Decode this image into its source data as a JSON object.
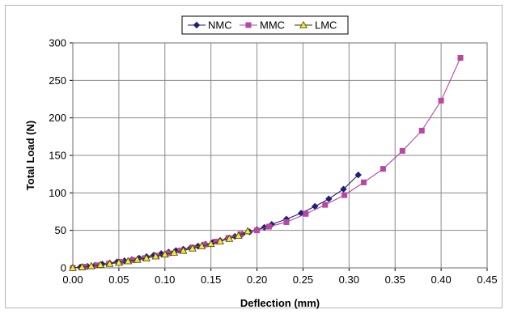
{
  "chart_data": {
    "type": "line",
    "title": "",
    "xlabel": "Deflection (mm)",
    "ylabel": "Total Load (N)",
    "xlim": [
      0,
      0.45
    ],
    "ylim": [
      0,
      300
    ],
    "x_ticks": [
      "0.00",
      "0.05",
      "0.10",
      "0.15",
      "0.20",
      "0.25",
      "0.30",
      "0.35",
      "0.40",
      "0.45"
    ],
    "y_ticks": [
      "0",
      "50",
      "100",
      "150",
      "200",
      "250",
      "300"
    ],
    "grid": true,
    "legend_position": "top",
    "series": [
      {
        "name": "NMC",
        "color": "#1f1f7a",
        "marker": "diamond",
        "points": [
          [
            0.0,
            0
          ],
          [
            0.008,
            1
          ],
          [
            0.016,
            2
          ],
          [
            0.024,
            3.5
          ],
          [
            0.032,
            5
          ],
          [
            0.04,
            6.5
          ],
          [
            0.048,
            8
          ],
          [
            0.056,
            9.5
          ],
          [
            0.064,
            11
          ],
          [
            0.072,
            13
          ],
          [
            0.08,
            15
          ],
          [
            0.088,
            17
          ],
          [
            0.096,
            19
          ],
          [
            0.104,
            21
          ],
          [
            0.112,
            23
          ],
          [
            0.12,
            25
          ],
          [
            0.128,
            27
          ],
          [
            0.136,
            29
          ],
          [
            0.144,
            31.5
          ],
          [
            0.152,
            34
          ],
          [
            0.16,
            36.5
          ],
          [
            0.168,
            39
          ],
          [
            0.176,
            42
          ],
          [
            0.184,
            45
          ],
          [
            0.192,
            48
          ],
          [
            0.2,
            51
          ],
          [
            0.208,
            54
          ],
          [
            0.216,
            58
          ],
          [
            0.232,
            65
          ],
          [
            0.248,
            73
          ],
          [
            0.263,
            82
          ],
          [
            0.278,
            92
          ],
          [
            0.294,
            105
          ],
          [
            0.31,
            124
          ]
        ]
      },
      {
        "name": "MMC",
        "color": "#b8479e",
        "marker": "square",
        "points": [
          [
            0.0,
            0
          ],
          [
            0.013,
            1.5
          ],
          [
            0.026,
            3.5
          ],
          [
            0.039,
            5.5
          ],
          [
            0.052,
            8
          ],
          [
            0.065,
            10.5
          ],
          [
            0.078,
            13
          ],
          [
            0.091,
            16
          ],
          [
            0.104,
            19.5
          ],
          [
            0.117,
            23
          ],
          [
            0.13,
            27
          ],
          [
            0.143,
            31
          ],
          [
            0.156,
            35
          ],
          [
            0.169,
            40
          ],
          [
            0.182,
            45
          ],
          [
            0.2,
            50
          ],
          [
            0.213,
            55
          ],
          [
            0.232,
            61
          ],
          [
            0.253,
            72
          ],
          [
            0.274,
            84
          ],
          [
            0.295,
            97
          ],
          [
            0.316,
            114
          ],
          [
            0.337,
            132
          ],
          [
            0.358,
            156
          ],
          [
            0.379,
            183
          ],
          [
            0.4,
            223
          ],
          [
            0.421,
            280
          ]
        ]
      },
      {
        "name": "LMC",
        "color": "#3a3a00",
        "fill": "#f2ea3a",
        "marker": "triangle",
        "points": [
          [
            0.0,
            0
          ],
          [
            0.01,
            1
          ],
          [
            0.02,
            2.5
          ],
          [
            0.03,
            4
          ],
          [
            0.04,
            5.5
          ],
          [
            0.05,
            7
          ],
          [
            0.06,
            9
          ],
          [
            0.07,
            11
          ],
          [
            0.08,
            13
          ],
          [
            0.09,
            15.5
          ],
          [
            0.1,
            18
          ],
          [
            0.11,
            20.5
          ],
          [
            0.12,
            23
          ],
          [
            0.13,
            26
          ],
          [
            0.14,
            29
          ],
          [
            0.15,
            32
          ],
          [
            0.16,
            35.5
          ],
          [
            0.17,
            39
          ],
          [
            0.18,
            43
          ],
          [
            0.19,
            49
          ]
        ]
      }
    ]
  }
}
